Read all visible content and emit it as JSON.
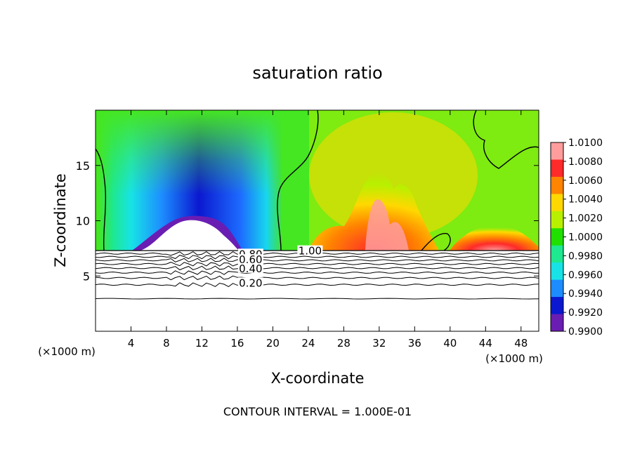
{
  "chart_data": {
    "type": "heatmap",
    "title": "saturation ratio",
    "xlabel": "X-coordinate",
    "ylabel": "Z-coordinate",
    "x_unit_label": "(×1000 m)",
    "x_ticks": [
      4,
      8,
      12,
      16,
      20,
      24,
      28,
      32,
      36,
      40,
      44,
      48
    ],
    "y_ticks": [
      5,
      10,
      15
    ],
    "xlim": [
      0,
      50
    ],
    "ylim": [
      0,
      20
    ],
    "footer": "CONTOUR INTERVAL = 1.000E-01",
    "colorbar": {
      "ticks": [
        "1.0100",
        "1.0080",
        "1.0060",
        "1.0040",
        "1.0020",
        "1.0000",
        "0.9980",
        "0.9960",
        "0.9940",
        "0.9920",
        "0.9900"
      ],
      "colors": [
        "#ff9d9d",
        "#ff2a2a",
        "#ff8400",
        "#ffd800",
        "#b8f000",
        "#20e000",
        "#1ee890",
        "#17e3e6",
        "#1d8cff",
        "#0b18cf",
        "#6a1db3"
      ],
      "range": [
        0.99,
        1.01
      ]
    },
    "contour_labels": [
      {
        "text": "1.00",
        "x": 24.2,
        "z": 7.2
      },
      {
        "text": "0.80",
        "x": 17.5,
        "z": 6.9
      },
      {
        "text": "0.60",
        "x": 17.5,
        "z": 6.4
      },
      {
        "text": "0.40",
        "x": 17.5,
        "z": 5.6
      },
      {
        "text": "0.20",
        "x": 17.5,
        "z": 4.3
      }
    ],
    "contour_levels_below_cloud": [
      0.2,
      0.3,
      0.4,
      0.5,
      0.6,
      0.7,
      0.8,
      0.9
    ],
    "cloud_base_z": 7.3,
    "features": [
      {
        "description": "subsaturated region",
        "x_range": [
          6,
          17
        ],
        "min_value": 0.99
      },
      {
        "description": "supersaturated plumes",
        "x_range": [
          23,
          38
        ],
        "max_value": 1.01
      },
      {
        "description": "supersaturated arc",
        "x_range": [
          40,
          50
        ],
        "max_value": 1.008
      }
    ]
  }
}
